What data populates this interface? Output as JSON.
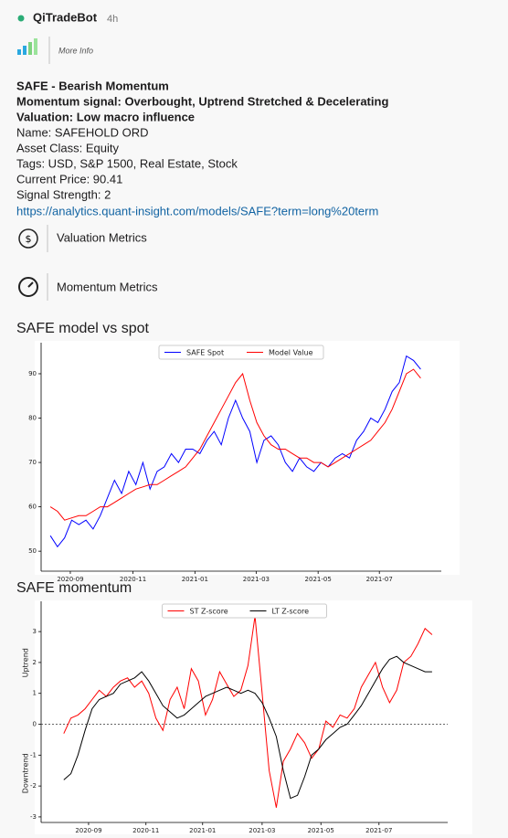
{
  "header": {
    "bot": "QiTradeBot",
    "time": "4h",
    "more_info": "More Info"
  },
  "message": {
    "lines": [
      "SAFE - Bearish Momentum",
      "Momentum signal: Overbought, Uptrend Stretched & Decelerating",
      "Valuation: Low macro influence",
      "Name: SAFEHOLD ORD",
      "Asset Class: Equity",
      "Tags: USD, S&P 1500, Real Estate, Stock",
      "Current Price: 90.41",
      "Signal Strength: 2"
    ],
    "link": "https://analytics.quant-insight.com/models/SAFE?term=long%20term"
  },
  "metrics": [
    "Valuation Metrics",
    "Momentum Metrics"
  ],
  "chart_data": [
    {
      "type": "line",
      "title": "SAFE model vs spot",
      "legend": "upper center",
      "xlim": [
        -1.3,
        54.9
      ],
      "xticks": [
        {
          "value": 2.8,
          "label": "2020-09"
        },
        {
          "value": 11.6,
          "label": "2020-11"
        },
        {
          "value": 20.3,
          "label": "2021-01"
        },
        {
          "value": 28.9,
          "label": "2021-03"
        },
        {
          "value": 37.6,
          "label": "2021-05"
        },
        {
          "value": 46.2,
          "label": "2021-07"
        }
      ],
      "ylim": [
        45.5,
        97
      ],
      "yticks": [
        50,
        60,
        70,
        80,
        90
      ],
      "series": [
        {
          "name": "SAFE Spot",
          "color": "#0000ff",
          "values": [
            53.5,
            51,
            53,
            57,
            56,
            57,
            55,
            58,
            62,
            66,
            63,
            68,
            65,
            70,
            64,
            68,
            69,
            72,
            70,
            73,
            73,
            72,
            75,
            77,
            74,
            80,
            84,
            80,
            77,
            70,
            75,
            76,
            74,
            70,
            68,
            71,
            69,
            68,
            70,
            69,
            71,
            72,
            71,
            75,
            77,
            80,
            79,
            82,
            86,
            88,
            94,
            93,
            91
          ]
        },
        {
          "name": "Model Value",
          "color": "#ff0000",
          "values": [
            60,
            59,
            57,
            57.5,
            58,
            58,
            59,
            60,
            60,
            61,
            62,
            63,
            64,
            64.5,
            65,
            65,
            66,
            67,
            68,
            69,
            71,
            73,
            76,
            79,
            82,
            85,
            88,
            90,
            84,
            79,
            76,
            74,
            73,
            73,
            72,
            71,
            71,
            70,
            70,
            69,
            70,
            71,
            72,
            73,
            74,
            75,
            77,
            79,
            82,
            86,
            90,
            91,
            89
          ]
        }
      ]
    },
    {
      "type": "line",
      "title": "SAFE momentum",
      "legend": "upper center",
      "ylabel_top": "Uptrend",
      "ylabel_bottom": "Downtrend",
      "hline": 0,
      "xlim": [
        -3.2,
        54.2
      ],
      "xticks": [
        {
          "value": 3.5,
          "label": "2020-09"
        },
        {
          "value": 11.6,
          "label": "2020-11"
        },
        {
          "value": 19.6,
          "label": "2021-01"
        },
        {
          "value": 28.0,
          "label": "2021-03"
        },
        {
          "value": 36.3,
          "label": "2021-05"
        },
        {
          "value": 44.5,
          "label": "2021-07"
        }
      ],
      "ylim": [
        -3.18,
        3.98
      ],
      "yticks": [
        -3,
        -2,
        -1,
        0,
        1,
        2,
        3
      ],
      "series": [
        {
          "name": "ST Z-score",
          "color": "#ff0000",
          "values": [
            -0.3,
            0.2,
            0.3,
            0.5,
            0.8,
            1.1,
            0.9,
            1.2,
            1.4,
            1.5,
            1.2,
            1.4,
            1.0,
            0.2,
            -0.2,
            0.8,
            1.2,
            0.5,
            1.8,
            1.4,
            0.3,
            0.8,
            1.7,
            1.3,
            0.9,
            1.1,
            1.9,
            3.5,
            1.0,
            -1.5,
            -2.7,
            -1.2,
            -0.8,
            -0.3,
            -0.6,
            -1.1,
            -0.8,
            0.1,
            -0.1,
            0.3,
            0.2,
            0.5,
            1.2,
            1.6,
            2.0,
            1.2,
            0.7,
            1.1,
            2.0,
            2.2,
            2.6,
            3.1,
            2.9
          ]
        },
        {
          "name": "LT Z-score",
          "color": "#000000",
          "values": [
            -1.8,
            -1.6,
            -1.0,
            -0.2,
            0.5,
            0.8,
            0.9,
            1.0,
            1.3,
            1.4,
            1.5,
            1.7,
            1.4,
            1.0,
            0.6,
            0.4,
            0.2,
            0.3,
            0.5,
            0.7,
            0.9,
            1.0,
            1.1,
            1.2,
            1.1,
            1.0,
            1.1,
            1.0,
            0.7,
            0.2,
            -0.4,
            -1.5,
            -2.4,
            -2.3,
            -1.7,
            -1.0,
            -0.8,
            -0.5,
            -0.3,
            -0.1,
            0.0,
            0.3,
            0.6,
            1.0,
            1.4,
            1.8,
            2.1,
            2.2,
            2.0,
            1.9,
            1.8,
            1.7,
            1.7
          ]
        }
      ]
    }
  ]
}
